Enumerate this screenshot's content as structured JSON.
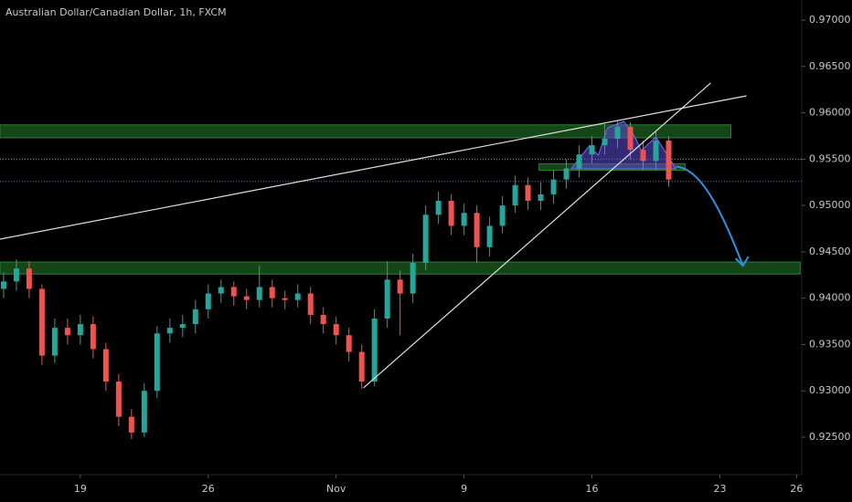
{
  "chart_data": {
    "type": "candlestick",
    "title": "Australian Dollar/Canadian Dollar, 1h, FXCM",
    "up_color": "#26a69a",
    "down_color": "#ef5350",
    "xlim": [
      -3.14,
      28.2
    ],
    "ylim": [
      0.92096,
      0.97217
    ],
    "xticks": [
      {
        "value": 0,
        "label": "19"
      },
      {
        "value": 5,
        "label": "26"
      },
      {
        "value": 10,
        "label": "Nov"
      },
      {
        "value": 15,
        "label": "9"
      },
      {
        "value": 20,
        "label": "16"
      },
      {
        "value": 25,
        "label": "23"
      },
      {
        "value": 28,
        "label": "26"
      }
    ],
    "yticks": [
      {
        "value": 0.925,
        "label": "0.92500"
      },
      {
        "value": 0.93,
        "label": "0.93000"
      },
      {
        "value": 0.935,
        "label": "0.93500"
      },
      {
        "value": 0.94,
        "label": "0.94000"
      },
      {
        "value": 0.945,
        "label": "0.94500"
      },
      {
        "value": 0.95,
        "label": "0.95000"
      },
      {
        "value": 0.955,
        "label": "0.95500"
      },
      {
        "value": 0.96,
        "label": "0.96000"
      },
      {
        "value": 0.965,
        "label": "0.96500"
      },
      {
        "value": 0.97,
        "label": "0.97000"
      }
    ],
    "x": [
      -3,
      -2.5,
      -2,
      -1.5,
      -1,
      -0.5,
      0,
      0.5,
      1,
      1.5,
      2,
      2.5,
      3,
      3.5,
      4,
      4.5,
      5,
      5.5,
      6,
      6.5,
      7,
      7.5,
      8,
      8.5,
      9,
      9.5,
      10,
      10.5,
      11,
      11.5,
      12,
      12.5,
      13,
      13.5,
      14,
      14.5,
      15,
      15.5,
      16,
      16.5,
      17,
      17.5,
      18,
      18.5,
      19,
      19.5,
      20,
      20.5,
      21,
      21.5,
      22,
      22.5,
      23
    ],
    "open": [
      0.941,
      0.9418,
      0.9432,
      0.941,
      0.9338,
      0.9368,
      0.936,
      0.9372,
      0.9345,
      0.931,
      0.9272,
      0.9255,
      0.93,
      0.9362,
      0.9368,
      0.9372,
      0.9388,
      0.9405,
      0.9412,
      0.9402,
      0.9398,
      0.9412,
      0.94,
      0.9398,
      0.9405,
      0.9382,
      0.9372,
      0.936,
      0.9342,
      0.931,
      0.9378,
      0.942,
      0.9405,
      0.9438,
      0.949,
      0.9505,
      0.9478,
      0.9492,
      0.9455,
      0.9478,
      0.95,
      0.9522,
      0.9505,
      0.9512,
      0.9528,
      0.954,
      0.9555,
      0.9565,
      0.9572,
      0.9585,
      0.956,
      0.9548,
      0.957
    ],
    "high": [
      0.9428,
      0.9442,
      0.944,
      0.9415,
      0.9378,
      0.9378,
      0.9382,
      0.938,
      0.9352,
      0.9318,
      0.928,
      0.9308,
      0.937,
      0.9378,
      0.9382,
      0.9398,
      0.9415,
      0.942,
      0.9418,
      0.941,
      0.9435,
      0.942,
      0.9408,
      0.9415,
      0.9412,
      0.939,
      0.938,
      0.9368,
      0.935,
      0.9388,
      0.944,
      0.943,
      0.9448,
      0.95,
      0.9515,
      0.9512,
      0.9502,
      0.95,
      0.9488,
      0.951,
      0.9532,
      0.953,
      0.9525,
      0.9538,
      0.955,
      0.9565,
      0.9575,
      0.9588,
      0.9592,
      0.959,
      0.957,
      0.958,
      0.9575
    ],
    "low": [
      0.94,
      0.9408,
      0.94,
      0.9328,
      0.933,
      0.935,
      0.935,
      0.9335,
      0.93,
      0.9262,
      0.9248,
      0.925,
      0.9292,
      0.9352,
      0.9358,
      0.9362,
      0.9378,
      0.9395,
      0.9392,
      0.9388,
      0.939,
      0.939,
      0.9388,
      0.939,
      0.9372,
      0.9362,
      0.935,
      0.9332,
      0.9302,
      0.9305,
      0.9368,
      0.936,
      0.9395,
      0.943,
      0.948,
      0.9468,
      0.9468,
      0.9438,
      0.9445,
      0.947,
      0.9492,
      0.9495,
      0.9495,
      0.9502,
      0.9518,
      0.953,
      0.9545,
      0.9555,
      0.9562,
      0.955,
      0.9538,
      0.9538,
      0.952
    ],
    "close": [
      0.9418,
      0.9432,
      0.941,
      0.9338,
      0.9368,
      0.936,
      0.9372,
      0.9345,
      0.931,
      0.9272,
      0.9255,
      0.93,
      0.9362,
      0.9368,
      0.9372,
      0.9388,
      0.9405,
      0.9412,
      0.9402,
      0.9398,
      0.9412,
      0.94,
      0.9398,
      0.9405,
      0.9382,
      0.9372,
      0.936,
      0.9342,
      0.931,
      0.9378,
      0.942,
      0.9405,
      0.9438,
      0.949,
      0.9505,
      0.9478,
      0.9492,
      0.9455,
      0.9478,
      0.95,
      0.9522,
      0.9505,
      0.9512,
      0.9528,
      0.954,
      0.9555,
      0.9565,
      0.9572,
      0.9585,
      0.956,
      0.9548,
      0.957,
      0.9528
    ],
    "zones": [
      {
        "x": [
          -3.14,
          25.43
        ],
        "y": [
          0.9573,
          0.9587
        ],
        "color": "#1b5e20"
      },
      {
        "x": [
          17.93,
          23.64
        ],
        "y": [
          0.9538,
          0.9545
        ],
        "color": "#1b5e20"
      },
      {
        "x": [
          -3.14,
          28.14
        ],
        "y": [
          0.9426,
          0.9439
        ],
        "color": "#1b5e20"
      }
    ],
    "trend_lines": [
      {
        "x": [
          -3.14,
          26.04
        ],
        "y": [
          0.94637,
          0.96183
        ],
        "color": "#e0e0e0"
      },
      {
        "x": [
          11.07,
          24.64
        ],
        "y": [
          0.93032,
          0.96321
        ],
        "color": "#e0e0e0"
      }
    ],
    "levels": [
      {
        "y": 0.955,
        "color": "#9e9e9e"
      },
      {
        "y": 0.9526,
        "color": "#7e57c2"
      }
    ],
    "pattern": {
      "x": [
        19.18,
        19.89,
        20.25,
        20.61,
        21.25,
        21.68,
        21.93,
        22.5,
        23.29
      ],
      "y": [
        0.95395,
        0.95641,
        0.95543,
        0.95838,
        0.95907,
        0.9574,
        0.95592,
        0.9574,
        0.95395
      ],
      "color": "#5c4bd6"
    },
    "projection": {
      "x": [
        23.29,
        24.2,
        25.0,
        25.9
      ],
      "y": [
        0.9542,
        0.954,
        0.95,
        0.9435
      ],
      "color": "#2f8fe0"
    }
  }
}
